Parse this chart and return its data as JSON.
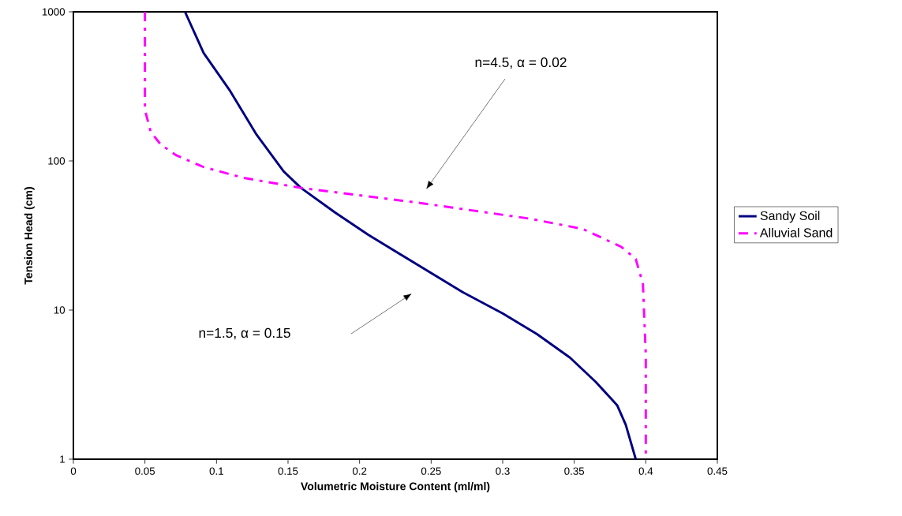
{
  "chart_data": {
    "type": "line",
    "xlabel": "Volumetric Moisture Content (ml/ml)",
    "ylabel": "Tension Head (cm)",
    "log": "y",
    "grid": false,
    "legend": "right",
    "xlim": [
      0,
      0.45
    ],
    "ylim": [
      1,
      1000
    ],
    "xticks": [
      0,
      0.05,
      0.1,
      0.15,
      0.2,
      0.25,
      0.3,
      0.35,
      0.4,
      0.45
    ],
    "yticks": [
      1,
      10,
      100,
      1000
    ],
    "series": [
      {
        "name": "Sandy Soil",
        "color": "#000080",
        "line_style": "solid",
        "x": [
          0.078,
          0.091,
          0.109,
          0.128,
          0.147,
          0.159,
          0.183,
          0.206,
          0.272,
          0.3,
          0.324,
          0.347,
          0.365,
          0.38,
          0.386,
          0.393
        ],
        "values": [
          1000,
          530,
          300,
          150,
          85,
          66,
          45,
          32,
          13.2,
          9.5,
          6.9,
          4.8,
          3.3,
          2.3,
          1.7,
          1
        ]
      },
      {
        "name": "Alluvial Sand",
        "color": "#ff00ff",
        "line_style": "dashed",
        "x": [
          0.05,
          0.05,
          0.054,
          0.061,
          0.072,
          0.091,
          0.119,
          0.159,
          0.244,
          0.319,
          0.356,
          0.383,
          0.393,
          0.398,
          0.4,
          0.4
        ],
        "values": [
          1000,
          220,
          157,
          129,
          109,
          91,
          77,
          66,
          52,
          41,
          35,
          26.5,
          22,
          15,
          5,
          1
        ]
      }
    ],
    "annotations": [
      "n=4.5, α = 0.02",
      "n=1.5, α = 0.15"
    ]
  }
}
